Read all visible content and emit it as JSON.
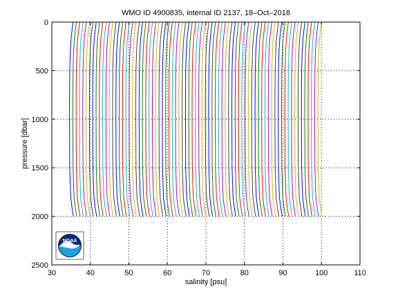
{
  "chart_data": {
    "type": "line",
    "title": "WMO ID 4900835, internal ID 2137, 18–Oct–2018",
    "xlabel": "salinity [psu]",
    "ylabel": "pressure [dbar]",
    "xlim": [
      30,
      110
    ],
    "ylim": [
      2500,
      0
    ],
    "y_reversed": true,
    "x_ticks": [
      30,
      40,
      50,
      60,
      70,
      80,
      90,
      100,
      110
    ],
    "y_ticks": [
      0,
      500,
      1000,
      1500,
      2000,
      2500
    ],
    "grid": "dotted",
    "series_colors": [
      "#0000ff",
      "#008000",
      "#ff0000",
      "#00bfbf",
      "#bf00bf",
      "#bfbf00",
      "#404040"
    ],
    "profile_count": 76,
    "profile_base_salinity": 34.6,
    "profile_offset_step": 0.86,
    "profile_max_pressure": 2000,
    "profile_shape": {
      "pressure": [
        0,
        20,
        50,
        100,
        150,
        200,
        300,
        500,
        800,
        1000,
        1500,
        1800,
        1900,
        2000
      ],
      "salinity_anomaly": [
        0.9,
        0.85,
        0.75,
        0.6,
        0.45,
        0.35,
        0.2,
        0.05,
        0.0,
        0.0,
        0.05,
        0.3,
        0.6,
        1.0
      ]
    }
  },
  "logo": {
    "text": "NOAA",
    "colors": {
      "sky": "#0a2a7a",
      "sea": "#1ea0e6",
      "bird": "#ffffff",
      "ring": "#0a1a4a"
    }
  }
}
